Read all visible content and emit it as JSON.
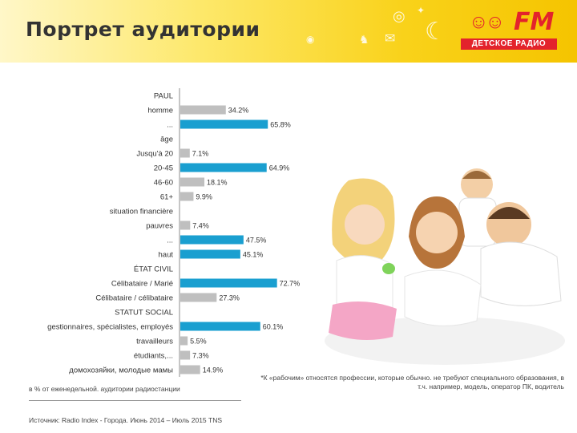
{
  "header": {
    "title": "Портрет аудитории",
    "logo_text": "FM",
    "logo_subtitle": "ДЕТСКОЕ РАДИО"
  },
  "colors": {
    "bar_blue": "#1a9fd0",
    "bar_gray": "#bfbfbf",
    "header_yellow": "#f9d21a",
    "logo_red": "#e3232c"
  },
  "icons": [
    "target-icon",
    "envelope-icon",
    "rabbit-icon",
    "moon-icon",
    "star-icon",
    "rocket-icon"
  ],
  "chart_data": {
    "type": "bar",
    "orientation": "horizontal",
    "value_suffix": "%",
    "xlim": [
      0,
      100
    ],
    "grid": false,
    "rows": [
      {
        "label": "PAUL",
        "header": true
      },
      {
        "label": "homme",
        "value": 34.2,
        "value_label": "34.2%",
        "color": "gray"
      },
      {
        "label": "...",
        "value": 65.8,
        "value_label": "65.8%",
        "color": "blue"
      },
      {
        "label": "âge",
        "header": true
      },
      {
        "label": "Jusqu'à 20",
        "value": 7.1,
        "value_label": "7.1%",
        "color": "gray"
      },
      {
        "label": "20-45",
        "value": 64.9,
        "value_label": "64.9%",
        "color": "blue"
      },
      {
        "label": "46-60",
        "value": 18.1,
        "value_label": "18.1%",
        "color": "gray"
      },
      {
        "label": "61+",
        "value": 9.9,
        "value_label": "9.9%",
        "color": "gray"
      },
      {
        "label": "situation financière",
        "header": true
      },
      {
        "label": "pauvres",
        "value": 7.4,
        "value_label": "7.4%",
        "color": "gray"
      },
      {
        "label": "...",
        "value": 47.5,
        "value_label": "47.5%",
        "color": "blue"
      },
      {
        "label": "haut",
        "value": 45.1,
        "value_label": "45.1%",
        "color": "blue"
      },
      {
        "label": "ÉTAT CIVIL",
        "header": true
      },
      {
        "label": "Célibataire / Marié",
        "value": 72.7,
        "value_label": "72.7%",
        "color": "blue"
      },
      {
        "label": "Célibataire / célibataire",
        "value": 27.3,
        "value_label": "27.3%",
        "color": "gray"
      },
      {
        "label": "STATUT SOCIAL",
        "header": true
      },
      {
        "label": "gestionnaires, spécialistes, employés",
        "value": 60.1,
        "value_label": "60.1%",
        "color": "blue"
      },
      {
        "label": "travailleurs",
        "value": 5.5,
        "value_label": "5.5%",
        "color": "gray"
      },
      {
        "label": "étudiants,...",
        "value": 7.3,
        "value_label": "7.3%",
        "color": "gray"
      },
      {
        "label": "домохозяйки, молодые мамы",
        "value": 14.9,
        "value_label": "14.9%",
        "color": "gray"
      }
    ]
  },
  "footnote": "*К «рабочим» относятся профессии, которые обычно. не требуют специального образования, в т.ч. например, модель, оператор ПК, водитель",
  "percent_note": "в % от еженедельной. аудитории радиостанции",
  "source": "Источник: Radio Index - Города. Июнь 2014 – Июль 2015 TNS"
}
